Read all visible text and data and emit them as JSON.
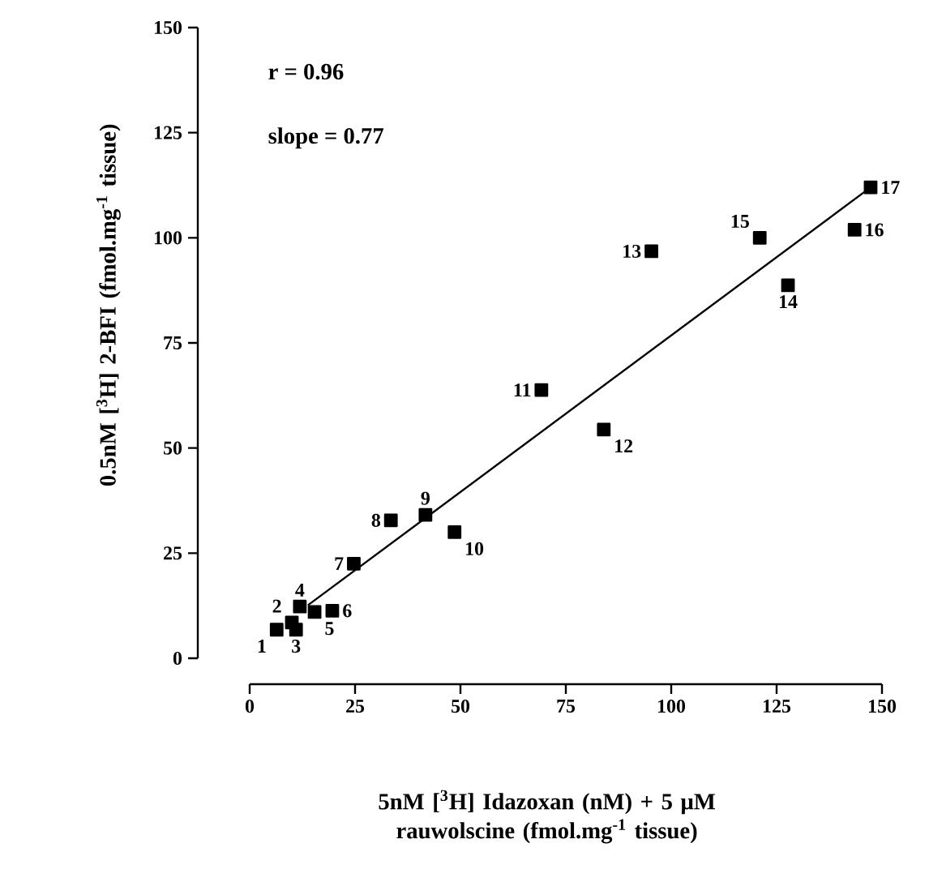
{
  "chart_data": {
    "type": "scatter",
    "xlabel": "5nM [$^{3}$H] Idazoxan (nM) + 5 μM rauwolscine (fmol.mg$^{-1}$ tissue)",
    "ylabel": "0.5nM [$^{3}$H] 2-BFI (fmol.mg$^{-1}$ tissue)",
    "xlim": [
      0,
      150
    ],
    "ylim": [
      0,
      150
    ],
    "xticks": [
      0,
      25,
      50,
      75,
      100,
      125,
      150
    ],
    "yticks": [
      0,
      25,
      50,
      75,
      100,
      125,
      150
    ],
    "series": [
      {
        "color": "#000000",
        "marker": "square",
        "x": [
          6.4,
          10.0,
          11.0,
          11.9,
          15.4,
          19.6,
          24.7,
          33.5,
          41.7,
          48.6,
          69.2,
          84.0,
          95.3,
          127.7,
          121.0,
          143.5,
          147.3
        ],
        "values": [
          6.8,
          8.5,
          6.8,
          12.3,
          11.0,
          11.3,
          22.5,
          32.8,
          34.1,
          30.0,
          63.8,
          54.4,
          96.8,
          88.7,
          100.0,
          101.9,
          112.0
        ]
      },
      {
        "type": "line",
        "color": "#000000",
        "marker": "none",
        "x": [
          13.8,
          147.3
        ],
        "values": [
          12.6,
          112.0
        ]
      }
    ],
    "annotations": [
      "r = 0.96",
      "slope = 0.77",
      {
        "text": "1",
        "x": 6.4,
        "y": 6.8
      },
      {
        "text": "2",
        "x": 10.0,
        "y": 8.5
      },
      {
        "text": "3",
        "x": 11.0,
        "y": 6.8
      },
      {
        "text": "4",
        "x": 11.9,
        "y": 12.3
      },
      {
        "text": "5",
        "x": 15.4,
        "y": 11.0
      },
      {
        "text": "6",
        "x": 19.6,
        "y": 11.3
      },
      {
        "text": "7",
        "x": 24.7,
        "y": 22.5
      },
      {
        "text": "8",
        "x": 33.5,
        "y": 32.8
      },
      {
        "text": "9",
        "x": 41.7,
        "y": 34.1
      },
      {
        "text": "10",
        "x": 48.6,
        "y": 30.0
      },
      {
        "text": "11",
        "x": 69.2,
        "y": 63.8
      },
      {
        "text": "12",
        "x": 84.0,
        "y": 54.4
      },
      {
        "text": "13",
        "x": 95.3,
        "y": 96.8
      },
      {
        "text": "14",
        "x": 127.7,
        "y": 88.7
      },
      {
        "text": "15",
        "x": 121.0,
        "y": 100.0
      },
      {
        "text": "16",
        "x": 143.5,
        "y": 101.9
      },
      {
        "text": "17",
        "x": 147.3,
        "y": 112.0
      }
    ]
  }
}
